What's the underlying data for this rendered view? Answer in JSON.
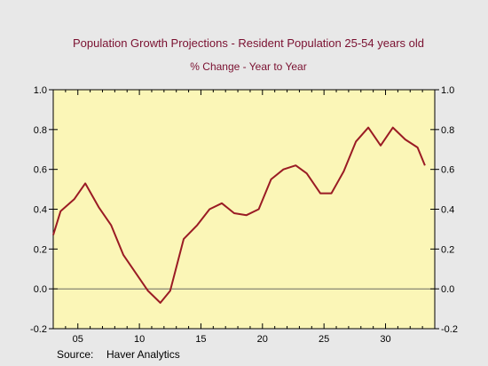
{
  "colors": {
    "background": "#e8e8e8",
    "plot_background": "#fbf6b7",
    "title_text": "#7a1030",
    "series_line": "#9a1b24",
    "zero_line": "#555555",
    "axis": "#000000"
  },
  "source_label": "Source:",
  "source_name": "Haver Analytics",
  "chart_data": {
    "type": "line",
    "title": "Population Growth Projections - Resident Population 25-54 years old",
    "subtitle": "% Change - Year to Year",
    "xlabel": "",
    "ylabel": "",
    "xlim": [
      2003,
      2034
    ],
    "ylim": [
      -0.2,
      1.0
    ],
    "grid": false,
    "legend": "none",
    "x_ticks": [
      2005,
      2010,
      2015,
      2020,
      2025,
      2030
    ],
    "x_tick_labels": [
      "05",
      "10",
      "15",
      "20",
      "25",
      "30"
    ],
    "y_ticks": [
      -0.2,
      0.0,
      0.2,
      0.4,
      0.6,
      0.8,
      1.0
    ],
    "y_tick_labels": [
      "-0.2",
      "0.0",
      "0.2",
      "0.4",
      "0.6",
      "0.8",
      "1.0"
    ],
    "reference_line_y": 0.0,
    "series": [
      {
        "x": [
          2003,
          2003.6,
          2004.7,
          2005.6,
          2006.7,
          2007.7,
          2008.7,
          2009.7,
          2010.7,
          2011.7,
          2012.5,
          2013.6,
          2014.7,
          2015.7,
          2016.7,
          2017.7,
          2018.7,
          2019.7,
          2020.7,
          2021.7,
          2022.7,
          2023.6,
          2024.7,
          2025.6,
          2026.6,
          2027.6,
          2028.6,
          2029.6,
          2030.6,
          2031.6,
          2032.6,
          2033.2
        ],
        "y": [
          0.27,
          0.39,
          0.45,
          0.53,
          0.41,
          0.32,
          0.17,
          0.08,
          -0.01,
          -0.07,
          -0.01,
          0.25,
          0.32,
          0.4,
          0.43,
          0.38,
          0.37,
          0.4,
          0.55,
          0.6,
          0.62,
          0.58,
          0.48,
          0.48,
          0.59,
          0.74,
          0.81,
          0.72,
          0.81,
          0.75,
          0.71,
          0.62
        ]
      }
    ]
  }
}
